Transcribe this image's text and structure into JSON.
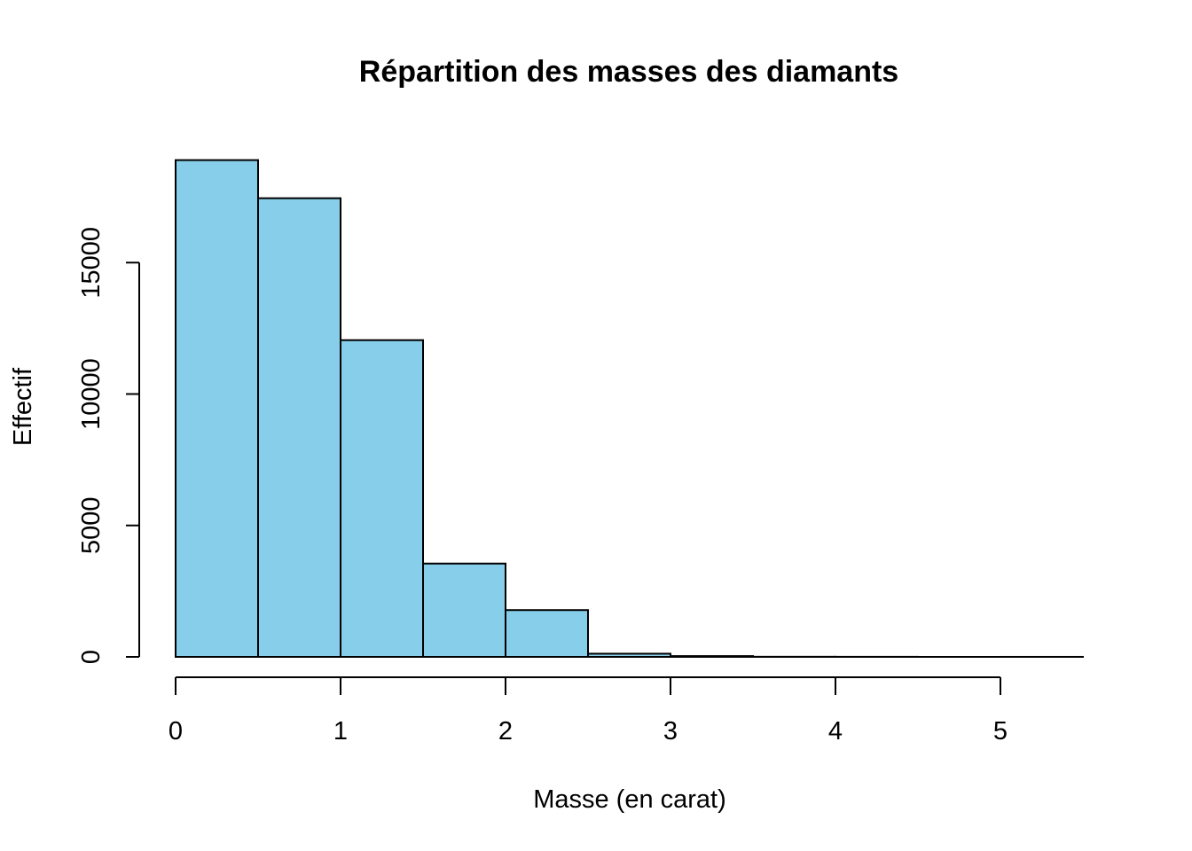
{
  "chart_data": {
    "type": "bar",
    "subtype": "histogram",
    "title": "Répartition des masses des diamants",
    "xlabel": "Masse (en carat)",
    "ylabel": "Effectif",
    "bins": [
      [
        0,
        0.5
      ],
      [
        0.5,
        1
      ],
      [
        1,
        1.5
      ],
      [
        1.5,
        2
      ],
      [
        2,
        2.5
      ],
      [
        2.5,
        3
      ],
      [
        3,
        3.5
      ],
      [
        3.5,
        4
      ],
      [
        4,
        4.5
      ],
      [
        4.5,
        5
      ],
      [
        5,
        5.5
      ]
    ],
    "values": [
      18900,
      17450,
      12050,
      3550,
      1780,
      120,
      30,
      5,
      3,
      0,
      1
    ],
    "xlim": [
      0,
      5.5
    ],
    "ylim": [
      0,
      19000
    ],
    "x_ticks": [
      0,
      1,
      2,
      3,
      4,
      5
    ],
    "x_tick_labels": [
      "0",
      "1",
      "2",
      "3",
      "4",
      "5"
    ],
    "y_ticks": [
      0,
      5000,
      10000,
      15000
    ],
    "y_tick_labels": [
      "0",
      "5000",
      "10000",
      "15000"
    ],
    "grid": false,
    "legend": "none",
    "colors": {
      "bar_fill": "#87CEEB",
      "bar_stroke": "#000000",
      "axis": "#000000"
    }
  }
}
